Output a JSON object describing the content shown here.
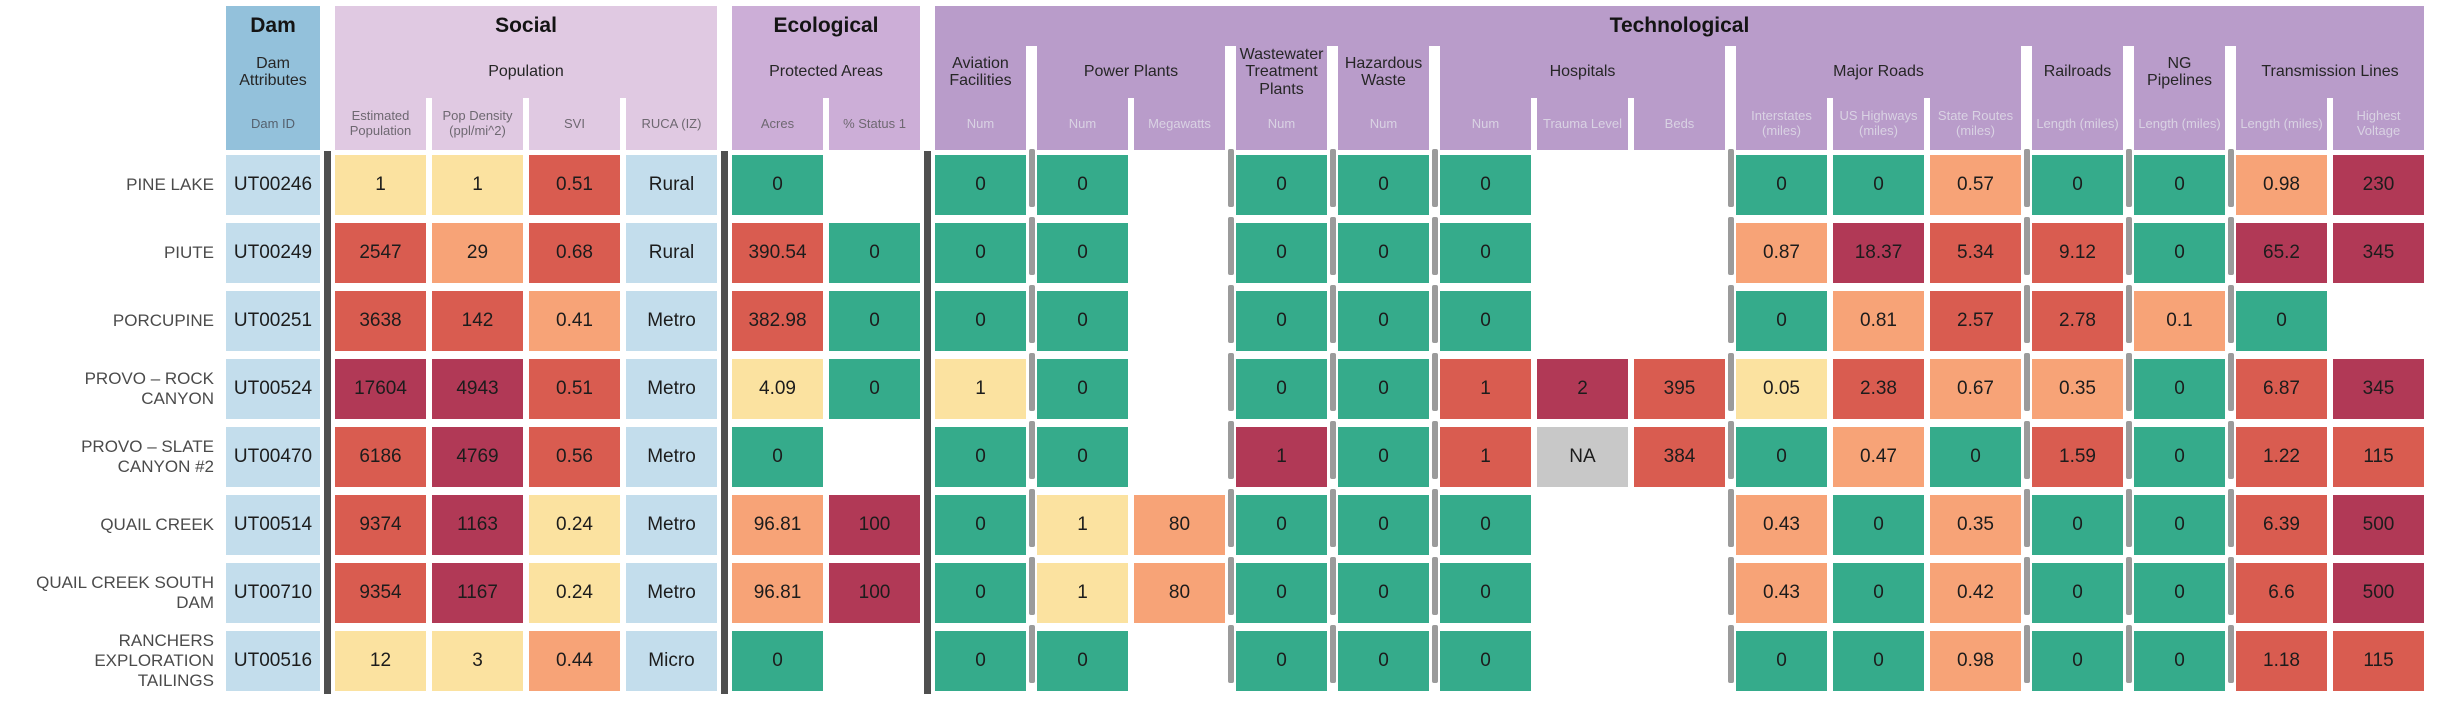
{
  "chart_data": {
    "type": "heatmap",
    "title": "Dam Attributes",
    "legend_position": "none",
    "grid": false,
    "groups": [
      {
        "id": "dam",
        "label": "Dam",
        "subgroups": [
          {
            "id": "dam_attributes",
            "label": "Dam Attributes",
            "columns": [
              {
                "key": "dam_id",
                "label": "Dam ID"
              }
            ]
          }
        ]
      },
      {
        "id": "social",
        "label": "Social",
        "subgroups": [
          {
            "id": "population",
            "label": "Population",
            "columns": [
              {
                "key": "est_pop",
                "label": "Estimated Population"
              },
              {
                "key": "pop_density",
                "label": "Pop Density (ppl/mi^2)"
              },
              {
                "key": "svi",
                "label": "SVI"
              },
              {
                "key": "ruca",
                "label": "RUCA (IZ)"
              }
            ]
          }
        ]
      },
      {
        "id": "ecological",
        "label": "Ecological",
        "subgroups": [
          {
            "id": "protected_areas",
            "label": "Protected Areas",
            "columns": [
              {
                "key": "acres",
                "label": "Acres"
              },
              {
                "key": "pct_status1",
                "label": "% Status 1"
              }
            ]
          }
        ]
      },
      {
        "id": "technological",
        "label": "Technological",
        "subgroups": [
          {
            "id": "aviation",
            "label": "Aviation Facilities",
            "columns": [
              {
                "key": "aviation_num",
                "label": "Num"
              }
            ]
          },
          {
            "id": "power_plants",
            "label": "Power Plants",
            "columns": [
              {
                "key": "pp_num",
                "label": "Num"
              },
              {
                "key": "pp_megawatts",
                "label": "Megawatts"
              }
            ]
          },
          {
            "id": "wastewater",
            "label": "Wastewater Treatment Plants",
            "columns": [
              {
                "key": "ww_num",
                "label": "Num"
              }
            ]
          },
          {
            "id": "hazardous_waste",
            "label": "Hazardous Waste",
            "columns": [
              {
                "key": "haz_num",
                "label": "Num"
              }
            ]
          },
          {
            "id": "hospitals",
            "label": "Hospitals",
            "columns": [
              {
                "key": "hosp_num",
                "label": "Num"
              },
              {
                "key": "trauma_level",
                "label": "Trauma Level"
              },
              {
                "key": "beds",
                "label": "Beds"
              }
            ]
          },
          {
            "id": "major_roads",
            "label": "Major Roads",
            "columns": [
              {
                "key": "interstates",
                "label": "Interstates (miles)"
              },
              {
                "key": "us_highways",
                "label": "US Highways (miles)"
              },
              {
                "key": "state_routes",
                "label": "State Routes (miles)"
              }
            ]
          },
          {
            "id": "railroads",
            "label": "Railroads",
            "columns": [
              {
                "key": "rr_length",
                "label": "Length (miles)"
              }
            ]
          },
          {
            "id": "ng_pipelines",
            "label": "NG Pipelines",
            "columns": [
              {
                "key": "ng_length",
                "label": "Length (miles)"
              }
            ]
          },
          {
            "id": "transmission",
            "label": "Transmission Lines",
            "columns": [
              {
                "key": "trans_length",
                "label": "Length (miles)"
              },
              {
                "key": "highest_voltage",
                "label": "Highest Voltage"
              }
            ]
          }
        ]
      }
    ],
    "rows": [
      {
        "label": "PINE LAKE",
        "cells": {
          "dam_id": [
            "UT00246",
            "blue"
          ],
          "est_pop": [
            "1",
            "yellow"
          ],
          "pop_density": [
            "1",
            "yellow"
          ],
          "svi": [
            "0.51",
            "red"
          ],
          "ruca": [
            "Rural",
            "blue"
          ],
          "acres": [
            "0",
            "green"
          ],
          "pct_status1": null,
          "aviation_num": [
            "0",
            "green"
          ],
          "pp_num": [
            "0",
            "green"
          ],
          "pp_megawatts": null,
          "ww_num": [
            "0",
            "green"
          ],
          "haz_num": [
            "0",
            "green"
          ],
          "hosp_num": [
            "0",
            "green"
          ],
          "trauma_level": null,
          "beds": null,
          "interstates": [
            "0",
            "green"
          ],
          "us_highways": [
            "0",
            "green"
          ],
          "state_routes": [
            "0.57",
            "orange"
          ],
          "rr_length": [
            "0",
            "green"
          ],
          "ng_length": [
            "0",
            "green"
          ],
          "trans_length": [
            "0.98",
            "orange"
          ],
          "highest_voltage": [
            "230",
            "maroon"
          ]
        }
      },
      {
        "label": "PIUTE",
        "cells": {
          "dam_id": [
            "UT00249",
            "blue"
          ],
          "est_pop": [
            "2547",
            "red"
          ],
          "pop_density": [
            "29",
            "orange"
          ],
          "svi": [
            "0.68",
            "red"
          ],
          "ruca": [
            "Rural",
            "blue"
          ],
          "acres": [
            "390.54",
            "red"
          ],
          "pct_status1": [
            "0",
            "green"
          ],
          "aviation_num": [
            "0",
            "green"
          ],
          "pp_num": [
            "0",
            "green"
          ],
          "pp_megawatts": null,
          "ww_num": [
            "0",
            "green"
          ],
          "haz_num": [
            "0",
            "green"
          ],
          "hosp_num": [
            "0",
            "green"
          ],
          "trauma_level": null,
          "beds": null,
          "interstates": [
            "0.87",
            "orange"
          ],
          "us_highways": [
            "18.37",
            "maroon"
          ],
          "state_routes": [
            "5.34",
            "red"
          ],
          "rr_length": [
            "9.12",
            "red"
          ],
          "ng_length": [
            "0",
            "green"
          ],
          "trans_length": [
            "65.2",
            "maroon"
          ],
          "highest_voltage": [
            "345",
            "maroon"
          ]
        }
      },
      {
        "label": "PORCUPINE",
        "cells": {
          "dam_id": [
            "UT00251",
            "blue"
          ],
          "est_pop": [
            "3638",
            "red"
          ],
          "pop_density": [
            "142",
            "red"
          ],
          "svi": [
            "0.41",
            "orange"
          ],
          "ruca": [
            "Metro",
            "blue"
          ],
          "acres": [
            "382.98",
            "red"
          ],
          "pct_status1": [
            "0",
            "green"
          ],
          "aviation_num": [
            "0",
            "green"
          ],
          "pp_num": [
            "0",
            "green"
          ],
          "pp_megawatts": null,
          "ww_num": [
            "0",
            "green"
          ],
          "haz_num": [
            "0",
            "green"
          ],
          "hosp_num": [
            "0",
            "green"
          ],
          "trauma_level": null,
          "beds": null,
          "interstates": [
            "0",
            "green"
          ],
          "us_highways": [
            "0.81",
            "orange"
          ],
          "state_routes": [
            "2.57",
            "red"
          ],
          "rr_length": [
            "2.78",
            "red"
          ],
          "ng_length": [
            "0.1",
            "orange"
          ],
          "trans_length": [
            "0",
            "green"
          ],
          "highest_voltage": null
        }
      },
      {
        "label": "PROVO – ROCK CANYON",
        "cells": {
          "dam_id": [
            "UT00524",
            "blue"
          ],
          "est_pop": [
            "17604",
            "maroon"
          ],
          "pop_density": [
            "4943",
            "maroon"
          ],
          "svi": [
            "0.51",
            "red"
          ],
          "ruca": [
            "Metro",
            "blue"
          ],
          "acres": [
            "4.09",
            "yellow"
          ],
          "pct_status1": [
            "0",
            "green"
          ],
          "aviation_num": [
            "1",
            "yellow"
          ],
          "pp_num": [
            "0",
            "green"
          ],
          "pp_megawatts": null,
          "ww_num": [
            "0",
            "green"
          ],
          "haz_num": [
            "0",
            "green"
          ],
          "hosp_num": [
            "1",
            "red"
          ],
          "trauma_level": [
            "2",
            "maroon"
          ],
          "beds": [
            "395",
            "red"
          ],
          "interstates": [
            "0.05",
            "yellow"
          ],
          "us_highways": [
            "2.38",
            "red"
          ],
          "state_routes": [
            "0.67",
            "orange"
          ],
          "rr_length": [
            "0.35",
            "orange"
          ],
          "ng_length": [
            "0",
            "green"
          ],
          "trans_length": [
            "6.87",
            "red"
          ],
          "highest_voltage": [
            "345",
            "maroon"
          ]
        }
      },
      {
        "label": "PROVO – SLATE CANYON #2",
        "cells": {
          "dam_id": [
            "UT00470",
            "blue"
          ],
          "est_pop": [
            "6186",
            "red"
          ],
          "pop_density": [
            "4769",
            "maroon"
          ],
          "svi": [
            "0.56",
            "red"
          ],
          "ruca": [
            "Metro",
            "blue"
          ],
          "acres": [
            "0",
            "green"
          ],
          "pct_status1": null,
          "aviation_num": [
            "0",
            "green"
          ],
          "pp_num": [
            "0",
            "green"
          ],
          "pp_megawatts": null,
          "ww_num": [
            "1",
            "maroon"
          ],
          "haz_num": [
            "0",
            "green"
          ],
          "hosp_num": [
            "1",
            "red"
          ],
          "trauma_level": [
            "NA",
            "gray"
          ],
          "beds": [
            "384",
            "red"
          ],
          "interstates": [
            "0",
            "green"
          ],
          "us_highways": [
            "0.47",
            "orange"
          ],
          "state_routes": [
            "0",
            "green"
          ],
          "rr_length": [
            "1.59",
            "red"
          ],
          "ng_length": [
            "0",
            "green"
          ],
          "trans_length": [
            "1.22",
            "red"
          ],
          "highest_voltage": [
            "115",
            "red"
          ]
        }
      },
      {
        "label": "QUAIL CREEK",
        "cells": {
          "dam_id": [
            "UT00514",
            "blue"
          ],
          "est_pop": [
            "9374",
            "red"
          ],
          "pop_density": [
            "1163",
            "maroon"
          ],
          "svi": [
            "0.24",
            "yellow"
          ],
          "ruca": [
            "Metro",
            "blue"
          ],
          "acres": [
            "96.81",
            "orange"
          ],
          "pct_status1": [
            "100",
            "maroon"
          ],
          "aviation_num": [
            "0",
            "green"
          ],
          "pp_num": [
            "1",
            "yellow"
          ],
          "pp_megawatts": [
            "80",
            "orange"
          ],
          "ww_num": [
            "0",
            "green"
          ],
          "haz_num": [
            "0",
            "green"
          ],
          "hosp_num": [
            "0",
            "green"
          ],
          "trauma_level": null,
          "beds": null,
          "interstates": [
            "0.43",
            "orange"
          ],
          "us_highways": [
            "0",
            "green"
          ],
          "state_routes": [
            "0.35",
            "orange"
          ],
          "rr_length": [
            "0",
            "green"
          ],
          "ng_length": [
            "0",
            "green"
          ],
          "trans_length": [
            "6.39",
            "red"
          ],
          "highest_voltage": [
            "500",
            "maroon"
          ]
        }
      },
      {
        "label": "QUAIL CREEK SOUTH DAM",
        "cells": {
          "dam_id": [
            "UT00710",
            "blue"
          ],
          "est_pop": [
            "9354",
            "red"
          ],
          "pop_density": [
            "1167",
            "maroon"
          ],
          "svi": [
            "0.24",
            "yellow"
          ],
          "ruca": [
            "Metro",
            "blue"
          ],
          "acres": [
            "96.81",
            "orange"
          ],
          "pct_status1": [
            "100",
            "maroon"
          ],
          "aviation_num": [
            "0",
            "green"
          ],
          "pp_num": [
            "1",
            "yellow"
          ],
          "pp_megawatts": [
            "80",
            "orange"
          ],
          "ww_num": [
            "0",
            "green"
          ],
          "haz_num": [
            "0",
            "green"
          ],
          "hosp_num": [
            "0",
            "green"
          ],
          "trauma_level": null,
          "beds": null,
          "interstates": [
            "0.43",
            "orange"
          ],
          "us_highways": [
            "0",
            "green"
          ],
          "state_routes": [
            "0.42",
            "orange"
          ],
          "rr_length": [
            "0",
            "green"
          ],
          "ng_length": [
            "0",
            "green"
          ],
          "trans_length": [
            "6.6",
            "red"
          ],
          "highest_voltage": [
            "500",
            "maroon"
          ]
        }
      },
      {
        "label": "RANCHERS EXPLORATION TAILINGS",
        "cells": {
          "dam_id": [
            "UT00516",
            "blue"
          ],
          "est_pop": [
            "12",
            "yellow"
          ],
          "pop_density": [
            "3",
            "yellow"
          ],
          "svi": [
            "0.44",
            "orange"
          ],
          "ruca": [
            "Micro",
            "blue"
          ],
          "acres": [
            "0",
            "green"
          ],
          "pct_status1": null,
          "aviation_num": [
            "0",
            "green"
          ],
          "pp_num": [
            "0",
            "green"
          ],
          "pp_megawatts": null,
          "ww_num": [
            "0",
            "green"
          ],
          "haz_num": [
            "0",
            "green"
          ],
          "hosp_num": [
            "0",
            "green"
          ],
          "trauma_level": null,
          "beds": null,
          "interstates": [
            "0",
            "green"
          ],
          "us_highways": [
            "0",
            "green"
          ],
          "state_routes": [
            "0.98",
            "orange"
          ],
          "rr_length": [
            "0",
            "green"
          ],
          "ng_length": [
            "0",
            "green"
          ],
          "trans_length": [
            "1.18",
            "red"
          ],
          "highest_voltage": [
            "115",
            "red"
          ]
        }
      }
    ]
  },
  "palette": {
    "green": "#35ab8b",
    "yellow": "#fbe2a0",
    "orange": "#f7a377",
    "red": "#d95c50",
    "maroon": "#b13956",
    "gray": "#c8c8c8",
    "blue": "#c3ddec",
    "header_dam": "#93c1db",
    "header_social": "#e0c9e2",
    "header_ecological": "#ccaed7",
    "header_technological": "#b99cca",
    "label_on_dam": "#55616e",
    "label_on_light": "#6e6871",
    "label_on_dark": "#d9d2e3",
    "group_separator": "#4f4f4f",
    "subgroup_separator": "#9b9b9b"
  }
}
